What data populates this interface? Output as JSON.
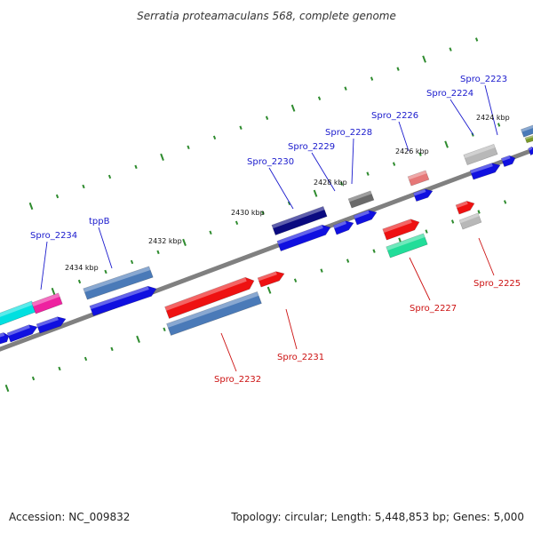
{
  "header": {
    "title": "Serratia proteamaculans 568, complete genome"
  },
  "footer": {
    "accession": "Accession: NC_009832",
    "summary": "Topology: circular; Length: 5,448,853 bp; Genes: 5,000"
  },
  "scale_labels": [
    "2424 kbp",
    "2426 kbp",
    "2428 kbp",
    "2430 kbp",
    "2432 kbp",
    "2434 kbp"
  ],
  "labels_top": [
    "Spro_2223",
    "Spro_2224",
    "Spro_2226",
    "Spro_2228",
    "Spro_2229",
    "Spro_2230",
    "tppB",
    "Spro_2234"
  ],
  "labels_bottom": [
    "Spro_2225",
    "Spro_2227",
    "Spro_2231",
    "Spro_2232"
  ],
  "colors": {
    "backbone": "#808080",
    "tick": "#2e8b2e",
    "label_top": "#1a1acd",
    "label_bottom": "#cc1111",
    "blue": "#1010e0",
    "navy": "#0a0a80",
    "steel": "#4a7ab8",
    "red": "#ee1111",
    "pink": "#e67878",
    "silver": "#b8b8b8",
    "gray": "#6a6a6a",
    "cyan": "#00e0e0",
    "magenta": "#ee22a0",
    "mint": "#22dd99",
    "olive": "#7a9a2a"
  }
}
